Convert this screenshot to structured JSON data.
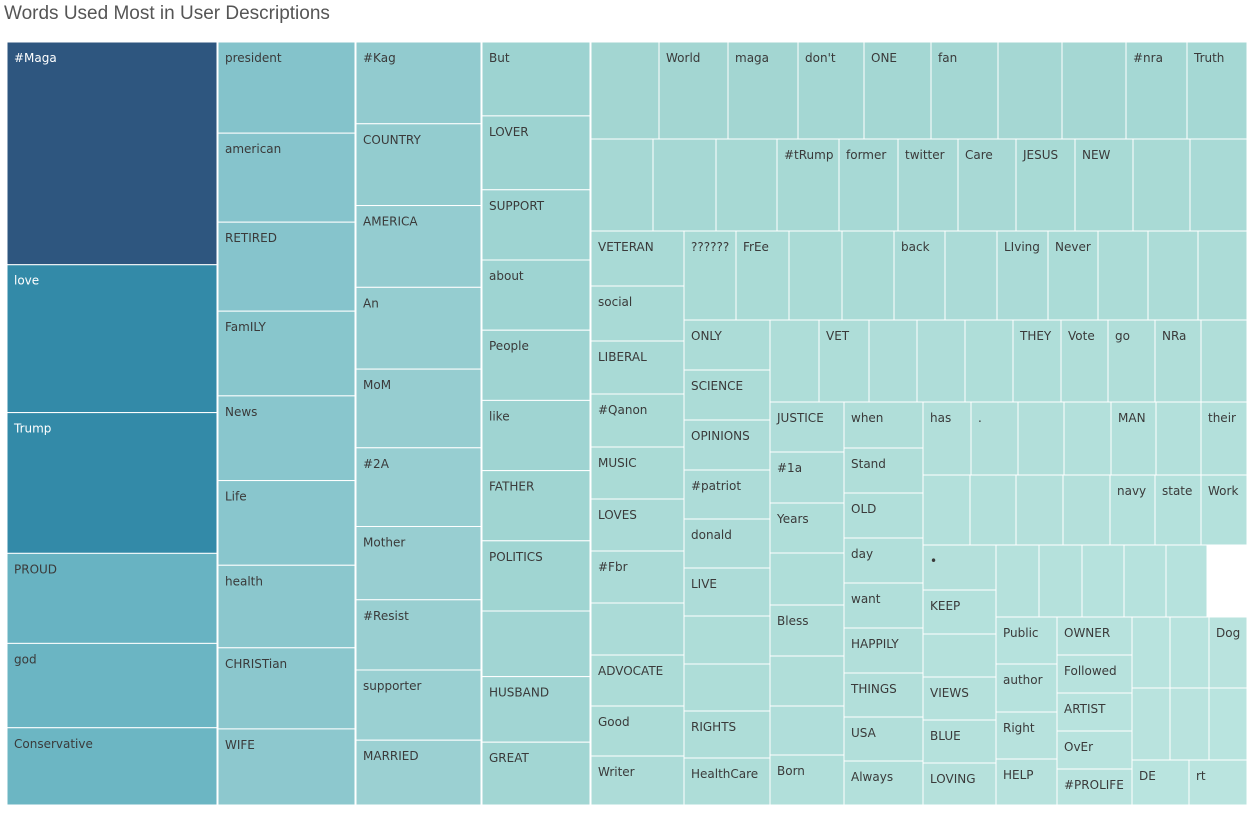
{
  "title": "Words Used Most in User Descriptions",
  "chart_data": {
    "type": "treemap",
    "title": "Words Used Most in User Descriptions",
    "value_scale": "relative area (estimated from tile sizes)",
    "color_scale": [
      "#2e567f",
      "#3389a9",
      "#65b1c1",
      "#8cc7cc",
      "#a6d9d2",
      "#bfe6dc"
    ],
    "label_dark_color": "#3a3a3a",
    "label_light_color": "#ffffff",
    "columns": [
      {
        "items": [
          {
            "label": "#Maga",
            "value": 47.0,
            "color": "#2e567f"
          },
          {
            "label": "love",
            "value": 31.2,
            "color": "#338aa8"
          },
          {
            "label": "Trump",
            "value": 29.7,
            "color": "#338aa8"
          },
          {
            "label": "PROUD",
            "value": 19.0,
            "color": "#68b3c2"
          },
          {
            "label": "god",
            "value": 17.8,
            "color": "#6bb5c3"
          },
          {
            "label": "Conservative",
            "value": 16.3,
            "color": "#6cb6c3"
          }
        ]
      },
      {
        "items": [
          {
            "label": "president",
            "value": 12.7,
            "color": "#84c3cb"
          },
          {
            "label": "american",
            "value": 12.4,
            "color": "#86c4cc"
          },
          {
            "label": "RETIRED",
            "value": 12.4,
            "color": "#86c4cc"
          },
          {
            "label": "FamILY",
            "value": 11.8,
            "color": "#88c6cc"
          },
          {
            "label": "News",
            "value": 11.8,
            "color": "#89c6cd"
          },
          {
            "label": "Life",
            "value": 11.8,
            "color": "#89c6cd"
          },
          {
            "label": "health",
            "value": 11.5,
            "color": "#8bc7cd"
          },
          {
            "label": "CHRISTian",
            "value": 11.3,
            "color": "#8bc7cd"
          },
          {
            "label": "WIFE",
            "value": 10.6,
            "color": "#8dc8ce"
          }
        ]
      },
      {
        "items": [
          {
            "label": "#Kag",
            "value": 10.6,
            "color": "#92cbcf"
          },
          {
            "label": "COUNTRY",
            "value": 10.6,
            "color": "#93cccf"
          },
          {
            "label": "AMERICA",
            "value": 10.6,
            "color": "#94ccd0"
          },
          {
            "label": "An",
            "value": 10.6,
            "color": "#95cdd0"
          },
          {
            "label": "MoM",
            "value": 10.2,
            "color": "#96cdd0"
          },
          {
            "label": "#2A",
            "value": 10.2,
            "color": "#97ced1"
          },
          {
            "label": "Mother",
            "value": 9.5,
            "color": "#98ced1"
          },
          {
            "label": "#Resist",
            "value": 9.1,
            "color": "#99cfd1"
          },
          {
            "label": "supporter",
            "value": 9.1,
            "color": "#9ad0d2"
          },
          {
            "label": "MARRIED",
            "value": 8.4,
            "color": "#9bd0d2"
          }
        ]
      },
      {
        "items": [
          {
            "label": "But",
            "value": 8.0,
            "color": "#9dd3d1"
          },
          {
            "label": "LOVER",
            "value": 8.0,
            "color": "#9dd3d1"
          },
          {
            "label": "SUPPORT",
            "value": 7.6,
            "color": "#9ed4d2"
          },
          {
            "label": "about",
            "value": 7.6,
            "color": "#9ed4d2"
          },
          {
            "label": "People",
            "value": 7.6,
            "color": "#9fd4d2"
          },
          {
            "label": "like",
            "value": 7.6,
            "color": "#9fd4d2"
          },
          {
            "label": "FATHER",
            "value": 7.6,
            "color": "#a0d5d2"
          },
          {
            "label": "POLITICS",
            "value": 7.6,
            "color": "#a0d5d2"
          },
          {
            "label": "",
            "value": 7.1,
            "color": "#a1d5d3"
          },
          {
            "label": "HUSBAND",
            "value": 7.1,
            "color": "#a1d5d3"
          },
          {
            "label": "GREAT",
            "value": 6.8,
            "color": "#a2d6d3"
          }
        ]
      }
    ],
    "small_tiles": [
      "World",
      "maga",
      "don't",
      "ONE",
      "fan",
      "#nra",
      "Truth",
      "#tRump",
      "former",
      "twitter",
      "Care",
      "JESUS",
      "NEW",
      "VETERAN",
      "??????",
      "FrEe",
      "back",
      "LIving",
      "Never",
      "social",
      "LIBERAL",
      "ONLY",
      "VET",
      "THEY",
      "Vote",
      "go",
      "NRa",
      "SCIENCE",
      "#Qanon",
      "JUSTICE",
      "when",
      "has",
      ".",
      "MAN",
      "their",
      "OPINIONS",
      "MUSIC",
      "#1a",
      "Stand",
      "navy",
      "state",
      "Work",
      "LOVES",
      "#patriot",
      "Years",
      "OLD",
      "#Fbr",
      "donald",
      "day",
      "•",
      "LIVE",
      "want",
      "KEEP",
      "Bless",
      "Public",
      "OWNER",
      "Dog",
      "ADVOCATE",
      "HAPPILY",
      "Followed",
      "author",
      "ARTIST",
      "Good",
      "RIGHTS",
      "THINGS",
      "VIEWS",
      "Right",
      "OvEr",
      "USA",
      "BLUE",
      "Writer",
      "HealthCare",
      "Born",
      "Always",
      "LOVING",
      "HELP",
      "#PROLIFE",
      "DE",
      "rt"
    ]
  },
  "tiles": [
    {
      "label": "",
      "color": "#a3d6d2"
    },
    {
      "label": "World",
      "color": "#a3d6d2"
    },
    {
      "label": "maga",
      "color": "#a3d6d2"
    },
    {
      "label": "don't",
      "color": "#a4d7d3"
    },
    {
      "label": "ONE",
      "color": "#a4d7d3"
    },
    {
      "label": "fan",
      "color": "#a4d7d3"
    },
    {
      "label": "",
      "color": "#a5d7d3"
    },
    {
      "label": "",
      "color": "#a5d7d3"
    },
    {
      "label": "#nra",
      "color": "#a5d8d4"
    },
    {
      "label": "Truth",
      "color": "#a5d8d4"
    },
    {
      "label": "",
      "color": "#a6d8d4"
    },
    {
      "label": "",
      "color": "#a6d8d4"
    },
    {
      "label": "",
      "color": "#a7d9d4"
    },
    {
      "label": "#tRump",
      "color": "#a7d9d4"
    },
    {
      "label": "former",
      "color": "#a7d9d5"
    },
    {
      "label": "twitter",
      "color": "#a8d9d5"
    },
    {
      "label": "Care",
      "color": "#a8d9d5"
    },
    {
      "label": "JESUS",
      "color": "#a8dad5"
    },
    {
      "label": "NEW",
      "color": "#a8dad5"
    },
    {
      "label": "",
      "color": "#a9dad5"
    },
    {
      "label": "",
      "color": "#a9dad6"
    },
    {
      "label": "VETERAN",
      "color": "#a9dad6"
    },
    {
      "label": "??????",
      "color": "#aadbd6"
    },
    {
      "label": "FrEe",
      "color": "#aadbd6"
    },
    {
      "label": "",
      "color": "#aadbd6"
    },
    {
      "label": "",
      "color": "#aadbd6"
    },
    {
      "label": "back",
      "color": "#abdbd7"
    },
    {
      "label": "",
      "color": "#abdbd7"
    },
    {
      "label": "LIving",
      "color": "#abdbd7"
    },
    {
      "label": "Never",
      "color": "#abdcd7"
    },
    {
      "label": "",
      "color": "#acdcd7"
    },
    {
      "label": "",
      "color": "#acdcd7"
    },
    {
      "label": "",
      "color": "#acdcd7"
    },
    {
      "label": "social",
      "color": "#a9dad6"
    },
    {
      "label": "LIBERAL",
      "color": "#a9dad6"
    },
    {
      "label": "#Qanon",
      "color": "#aadbd6"
    },
    {
      "label": "MUSIC",
      "color": "#aadbd6"
    },
    {
      "label": "LOVES",
      "color": "#abdbd7"
    },
    {
      "label": "#Fbr",
      "color": "#abdbd7"
    },
    {
      "label": "",
      "color": "#abdbd7"
    },
    {
      "label": "ADVOCATE",
      "color": "#acdcd7"
    },
    {
      "label": "Good",
      "color": "#acdcd7"
    },
    {
      "label": "Writer",
      "color": "#addcd8"
    },
    {
      "label": "ONLY",
      "color": "#acdcd7"
    },
    {
      "label": "SCIENCE",
      "color": "#acdcd7"
    },
    {
      "label": "OPINIONS",
      "color": "#addcd8"
    },
    {
      "label": "#patriot",
      "color": "#addcd8"
    },
    {
      "label": "donald",
      "color": "#addcd8"
    },
    {
      "label": "LIVE",
      "color": "#addcd8"
    },
    {
      "label": "",
      "color": "#aeddd8"
    },
    {
      "label": "",
      "color": "#aeddd8"
    },
    {
      "label": "RIGHTS",
      "color": "#aeddd8"
    },
    {
      "label": "HealthCare",
      "color": "#aeddd8"
    },
    {
      "label": "",
      "color": "#aeddd8"
    },
    {
      "label": "VET",
      "color": "#aeddd8"
    },
    {
      "label": "",
      "color": "#afddd9"
    },
    {
      "label": "",
      "color": "#afddd9"
    },
    {
      "label": "",
      "color": "#afded9"
    },
    {
      "label": "THEY",
      "color": "#afded9"
    },
    {
      "label": "Vote",
      "color": "#b0ded9"
    },
    {
      "label": "go",
      "color": "#b0ded9"
    },
    {
      "label": "NRa",
      "color": "#b0ded9"
    },
    {
      "label": "",
      "color": "#b0ded9"
    },
    {
      "label": "JUSTICE",
      "color": "#afddd9"
    },
    {
      "label": "#1a",
      "color": "#afddd9"
    },
    {
      "label": "Years",
      "color": "#afded9"
    },
    {
      "label": "",
      "color": "#afded9"
    },
    {
      "label": "Bless",
      "color": "#b0ded9"
    },
    {
      "label": "",
      "color": "#b0ded9"
    },
    {
      "label": "",
      "color": "#b0dedA"
    },
    {
      "label": "Born",
      "color": "#b1dfda"
    },
    {
      "label": "when",
      "color": "#b0ded9"
    },
    {
      "label": "Stand",
      "color": "#b0ded9"
    },
    {
      "label": "OLD",
      "color": "#b1dfda"
    },
    {
      "label": "day",
      "color": "#b1dfda"
    },
    {
      "label": "want",
      "color": "#b1dfda"
    },
    {
      "label": "HAPPILY",
      "color": "#b2dfda"
    },
    {
      "label": "THINGS",
      "color": "#b2dfda"
    },
    {
      "label": "USA",
      "color": "#b2dfda"
    },
    {
      "label": "Always",
      "color": "#b3e0db"
    },
    {
      "label": "has",
      "color": "#b2dfda"
    },
    {
      "label": ".",
      "color": "#b2dfda"
    },
    {
      "label": "",
      "color": "#b2dfda"
    },
    {
      "label": "",
      "color": "#b3e0db"
    },
    {
      "label": "MAN",
      "color": "#b3e0db"
    },
    {
      "label": "",
      "color": "#b3e0db"
    },
    {
      "label": "their",
      "color": "#b3e0db"
    },
    {
      "label": "",
      "color": "#b3e0db"
    },
    {
      "label": "",
      "color": "#b3e0db"
    },
    {
      "label": "",
      "color": "#b4e0db"
    },
    {
      "label": "",
      "color": "#b4e0db"
    },
    {
      "label": "navy",
      "color": "#b4e1dc"
    },
    {
      "label": "state",
      "color": "#b4e1dc"
    },
    {
      "label": "Work",
      "color": "#b4e1dc"
    },
    {
      "label": "•",
      "color": "#b4e0db"
    },
    {
      "label": "KEEP",
      "color": "#b4e1dc"
    },
    {
      "label": "",
      "color": "#b5e1dc"
    },
    {
      "label": "VIEWS",
      "color": "#b5e1dc"
    },
    {
      "label": "BLUE",
      "color": "#b5e1dc"
    },
    {
      "label": "LOVING",
      "color": "#b6e1dc"
    },
    {
      "label": "",
      "color": "#b5e1dc"
    },
    {
      "label": "",
      "color": "#b5e1dc"
    },
    {
      "label": "",
      "color": "#b6e2dd"
    },
    {
      "label": "",
      "color": "#b6e2dd"
    },
    {
      "label": "",
      "color": "#b6e2dd"
    },
    {
      "label": "Public",
      "color": "#b6e2dd"
    },
    {
      "label": "author",
      "color": "#b6e2dd"
    },
    {
      "label": "Right",
      "color": "#b7e2dd"
    },
    {
      "label": "HELP",
      "color": "#b7e2dd"
    },
    {
      "label": "OWNER",
      "color": "#b7e2dd"
    },
    {
      "label": "Followed",
      "color": "#b7e2dd"
    },
    {
      "label": "ARTIST",
      "color": "#b8e3de"
    },
    {
      "label": "OvEr",
      "color": "#b8e3de"
    },
    {
      "label": "#PROLIFE",
      "color": "#b8e3de"
    },
    {
      "label": "",
      "color": "#b8e3de"
    },
    {
      "label": "",
      "color": "#b8e3de"
    },
    {
      "label": "Dog",
      "color": "#b9e3de"
    },
    {
      "label": "",
      "color": "#b9e3de"
    },
    {
      "label": "",
      "color": "#b9e3de"
    },
    {
      "label": "",
      "color": "#b9e4df"
    },
    {
      "label": "DE",
      "color": "#b9e4df"
    },
    {
      "label": "rt",
      "color": "#bae4df"
    }
  ]
}
